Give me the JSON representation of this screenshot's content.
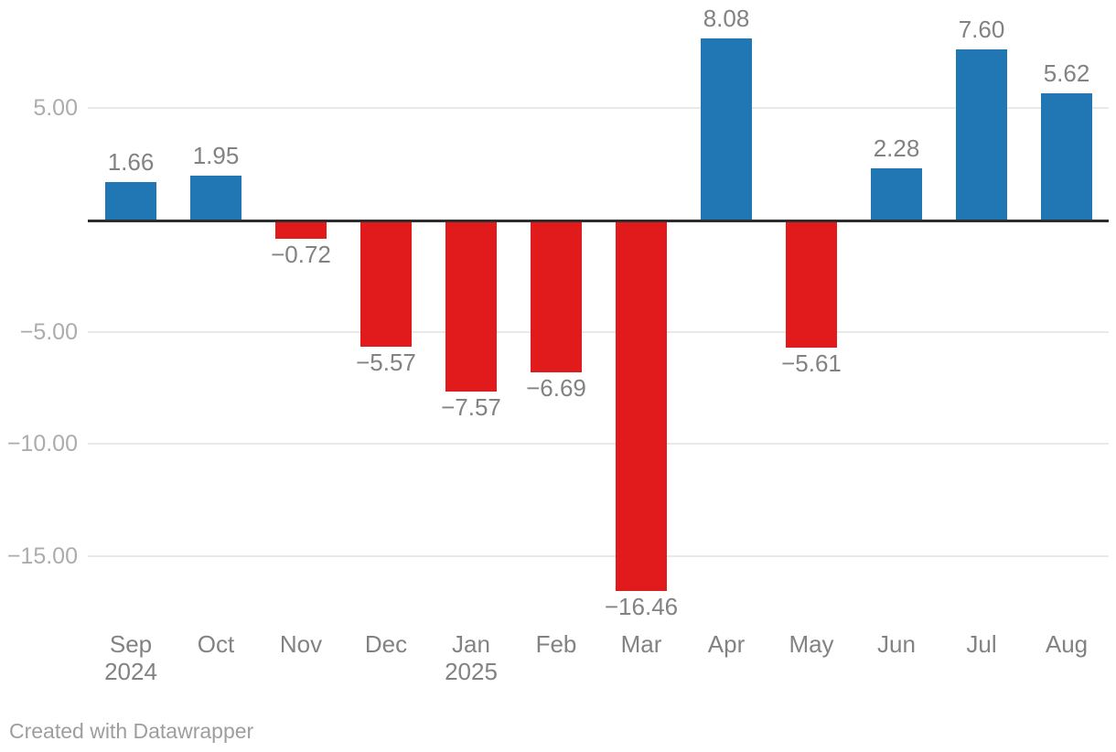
{
  "chart_data": {
    "type": "bar",
    "title": "",
    "xlabel": "",
    "ylabel": "",
    "grid": true,
    "legend": "none",
    "ylim": [
      -17.6,
      9.2
    ],
    "categories": [
      {
        "month": "Sep",
        "year": "2024"
      },
      {
        "month": "Oct",
        "year": ""
      },
      {
        "month": "Nov",
        "year": ""
      },
      {
        "month": "Dec",
        "year": ""
      },
      {
        "month": "Jan",
        "year": "2025"
      },
      {
        "month": "Feb",
        "year": ""
      },
      {
        "month": "Mar",
        "year": ""
      },
      {
        "month": "Apr",
        "year": ""
      },
      {
        "month": "May",
        "year": ""
      },
      {
        "month": "Jun",
        "year": ""
      },
      {
        "month": "Jul",
        "year": ""
      },
      {
        "month": "Aug",
        "year": ""
      }
    ],
    "series": [
      {
        "name": "monthly-value",
        "values": [
          1.66,
          1.95,
          -0.72,
          -5.57,
          -7.57,
          -6.69,
          -16.46,
          8.08,
          -5.61,
          2.28,
          7.6,
          5.62
        ]
      }
    ],
    "value_labels": [
      "1.66",
      "1.95",
      "−0.72",
      "−5.57",
      "−7.57",
      "−6.69",
      "−16.46",
      "8.08",
      "−5.61",
      "2.28",
      "7.60",
      "5.62"
    ],
    "y_ticks": [
      {
        "value": 5,
        "label": "5.00"
      },
      {
        "value": -5,
        "label": "−5.00"
      },
      {
        "value": -10,
        "label": "−10.00"
      },
      {
        "value": -15,
        "label": "−15.00"
      }
    ],
    "colors": {
      "positive": "#2077b4",
      "negative": "#e11a1c",
      "baseline": "#2d2d2d",
      "gridline": "#e9e9e9",
      "tick_text": "#acacac",
      "label_text": "#828282"
    }
  },
  "footer": {
    "credit": "Created with Datawrapper"
  }
}
